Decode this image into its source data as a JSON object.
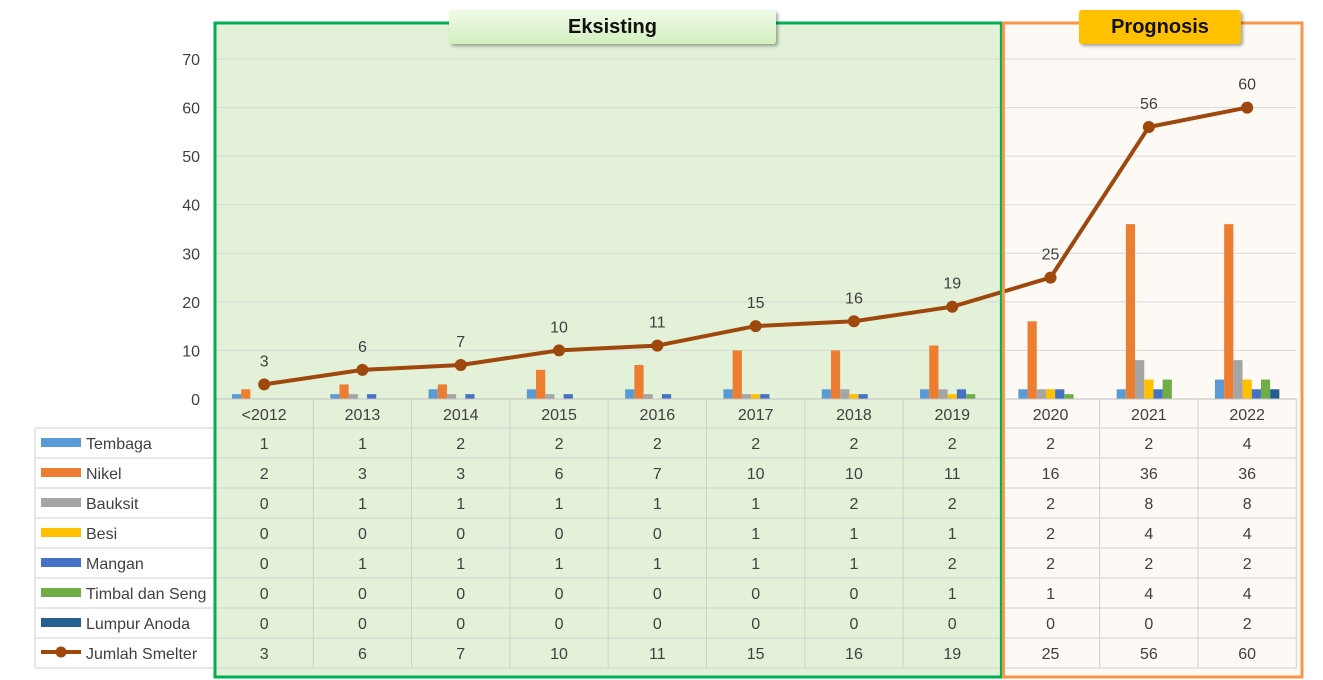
{
  "section_labels": {
    "existing": "Eksisting",
    "prognosis": "Prognosis"
  },
  "colors": {
    "existing_fill": "#e3f1d8",
    "existing_border": "#00b050",
    "prognosis_fill": "#fdf9f4",
    "prognosis_border": "#f79646",
    "gridline": "#d9d9d9"
  },
  "chart_data": {
    "type": "bar",
    "combo": "clustered bars with line",
    "categories": [
      "<2012",
      "2013",
      "2014",
      "2015",
      "2016",
      "2017",
      "2018",
      "2019",
      "2020",
      "2021",
      "2022"
    ],
    "ylim": [
      0,
      70
    ],
    "yticks": [
      0,
      10,
      20,
      30,
      40,
      50,
      60,
      70
    ],
    "grid": true,
    "legend": "data-table",
    "series": [
      {
        "name": "Tembaga",
        "type": "bar",
        "color": "#5b9bd5",
        "values": [
          1,
          1,
          2,
          2,
          2,
          2,
          2,
          2,
          2,
          2,
          4
        ]
      },
      {
        "name": "Nikel",
        "type": "bar",
        "color": "#ed7d31",
        "values": [
          2,
          3,
          3,
          6,
          7,
          10,
          10,
          11,
          16,
          36,
          36
        ]
      },
      {
        "name": "Bauksit",
        "type": "bar",
        "color": "#a5a5a5",
        "values": [
          0,
          1,
          1,
          1,
          1,
          1,
          2,
          2,
          2,
          8,
          8
        ]
      },
      {
        "name": "Besi",
        "type": "bar",
        "color": "#ffc000",
        "values": [
          0,
          0,
          0,
          0,
          0,
          1,
          1,
          1,
          2,
          4,
          4
        ]
      },
      {
        "name": "Mangan",
        "type": "bar",
        "color": "#4472c4",
        "values": [
          0,
          1,
          1,
          1,
          1,
          1,
          1,
          2,
          2,
          2,
          2
        ]
      },
      {
        "name": "Timbal dan Seng",
        "type": "bar",
        "color": "#70ad47",
        "values": [
          0,
          0,
          0,
          0,
          0,
          0,
          0,
          1,
          1,
          4,
          4
        ]
      },
      {
        "name": "Lumpur Anoda",
        "type": "bar",
        "color": "#255e91",
        "values": [
          0,
          0,
          0,
          0,
          0,
          0,
          0,
          0,
          0,
          0,
          2
        ]
      },
      {
        "name": "Jumlah Smelter",
        "type": "line",
        "color": "#9e480e",
        "values": [
          3,
          6,
          7,
          10,
          11,
          15,
          16,
          19,
          25,
          56,
          60
        ],
        "data_labels": true
      }
    ]
  }
}
